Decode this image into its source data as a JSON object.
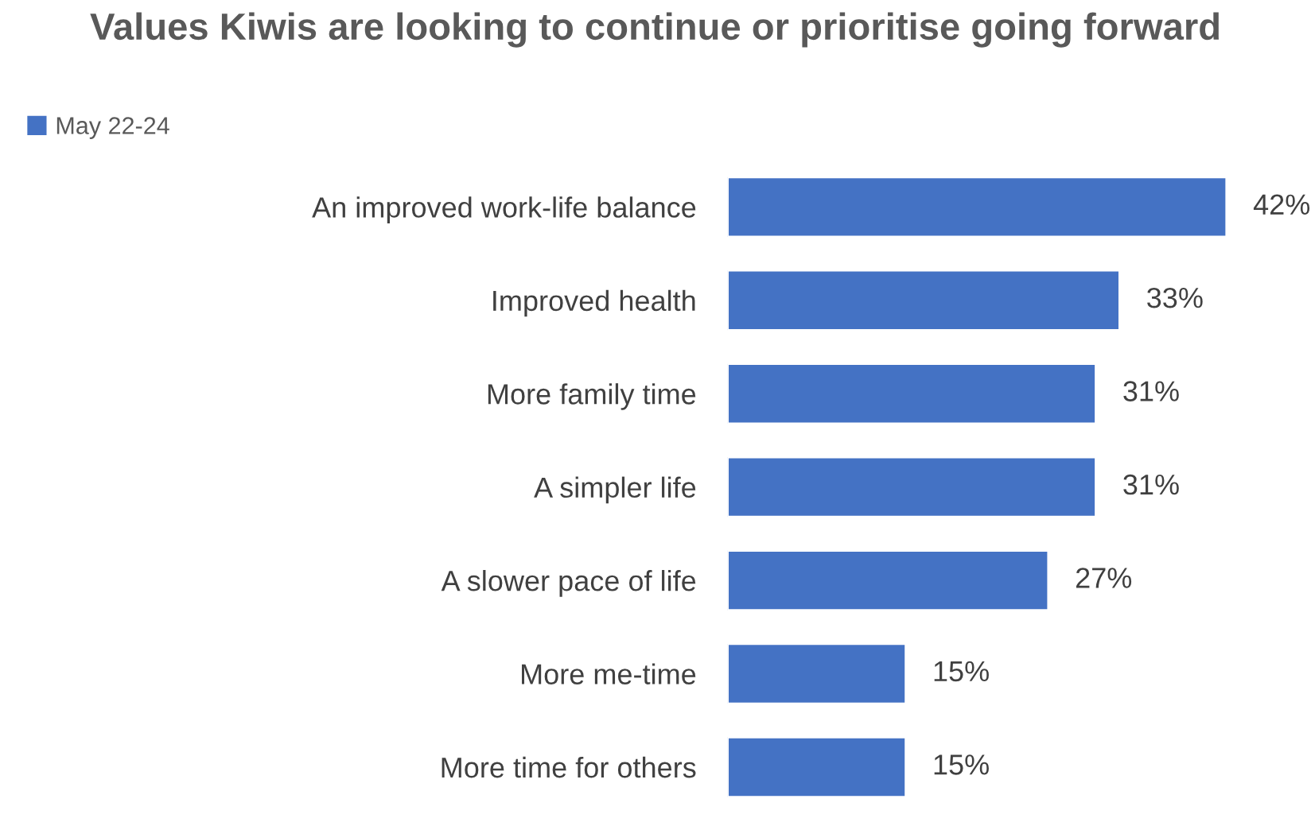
{
  "chart_data": {
    "type": "bar",
    "orientation": "horizontal",
    "title": "Values Kiwis are looking to continue or prioritise going forward",
    "categories": [
      "An improved work-life balance",
      "Improved health",
      "More family time",
      "A simpler life",
      "A slower pace of life",
      "More me-time",
      "More time for others"
    ],
    "series": [
      {
        "name": "May 22-24",
        "color": "#4472c4",
        "values": [
          42,
          33,
          31,
          31,
          27,
          15,
          15
        ],
        "value_labels": [
          "42%",
          "33%",
          "31%",
          "31%",
          "27%",
          "15%",
          "15%"
        ]
      }
    ],
    "legend": "top left",
    "grid": false
  }
}
